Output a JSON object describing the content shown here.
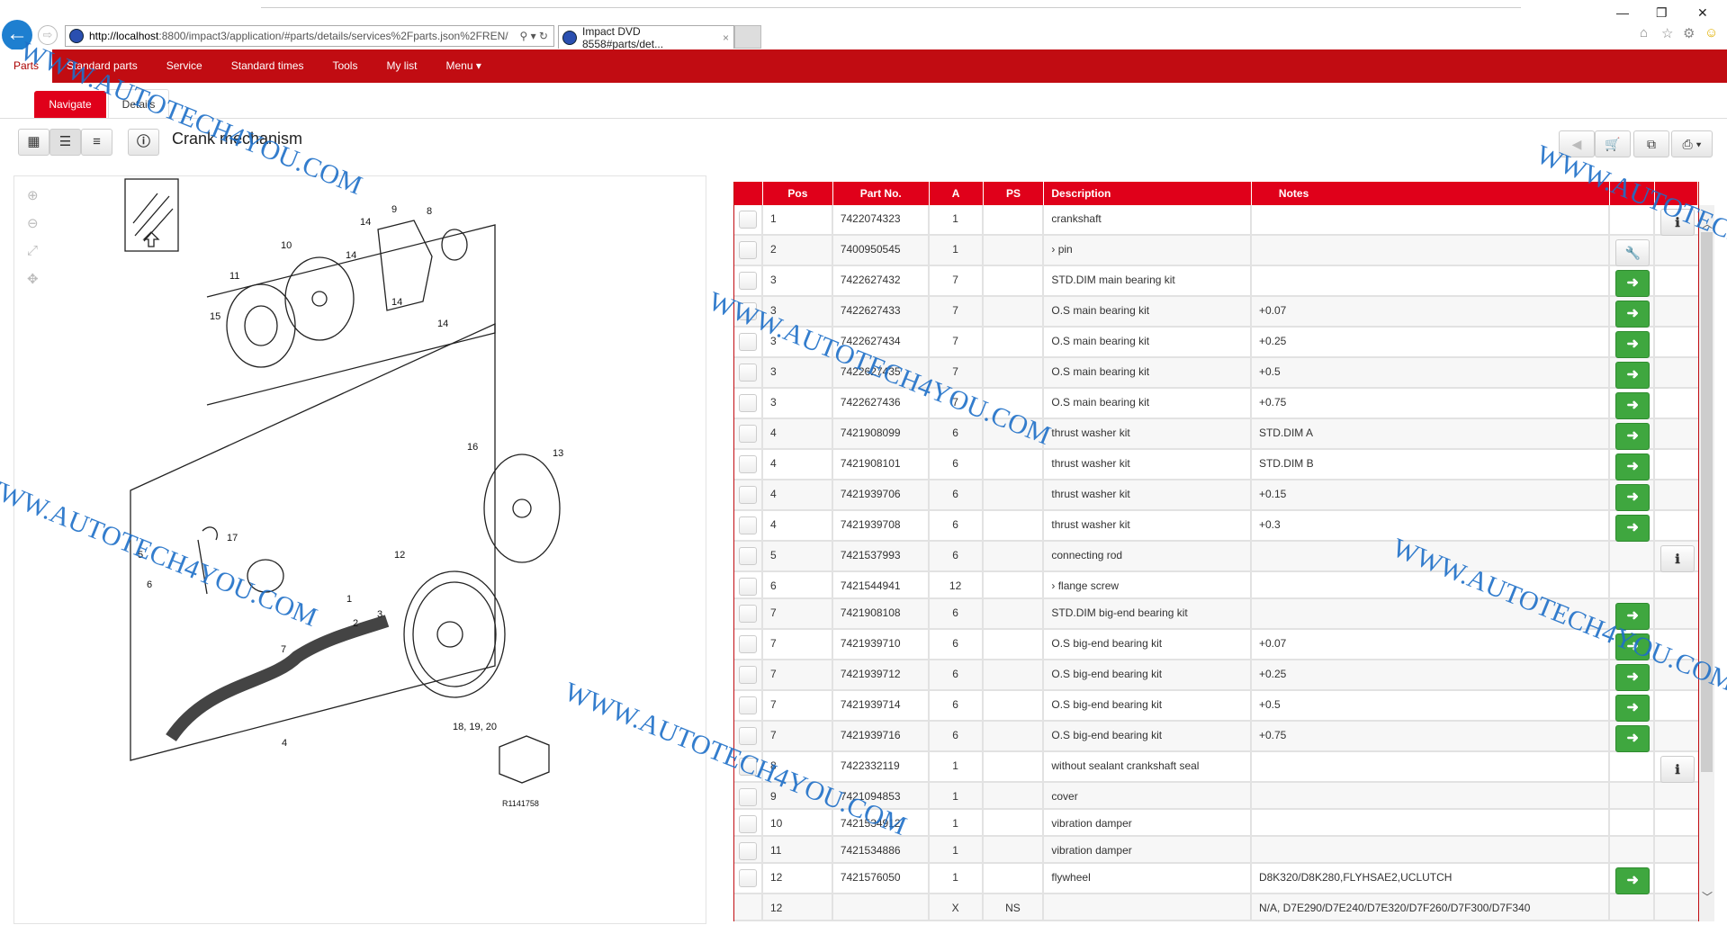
{
  "browser": {
    "url_host": "http://localhost",
    "url_rest": ":8800/impact3/application/#parts/details/services%2Fparts.json%2FREN/",
    "tab_title": "Impact DVD 8558#parts/det...",
    "tab_close": "×"
  },
  "nav": {
    "items": [
      "Parts",
      "Standard parts",
      "Service",
      "Standard times",
      "Tools",
      "My list",
      "Menu ▾"
    ]
  },
  "subtabs": {
    "navigate": "Navigate",
    "details": "Details"
  },
  "toolbar": {
    "title": "Crank mechanism"
  },
  "diagram": {
    "labels": [
      "9",
      "8",
      "14",
      "10",
      "14",
      "11",
      "14",
      "15",
      "14",
      "16",
      "13",
      "5",
      "17",
      "6",
      "12",
      "1",
      "2",
      "3",
      "7",
      "4",
      "18, 19, 20"
    ],
    "code": "R1141758"
  },
  "table": {
    "headers": [
      "Pos",
      "Part No.",
      "A",
      "PS",
      "Description",
      "Notes"
    ],
    "rows": [
      {
        "pos": "1",
        "part": "7422074323",
        "a": "1",
        "ps": "",
        "desc": "crankshaft",
        "notes": "",
        "action": "info"
      },
      {
        "pos": "2",
        "part": "7400950545",
        "a": "1",
        "ps": "",
        "desc": "› pin",
        "notes": "",
        "action": "tool"
      },
      {
        "pos": "3",
        "part": "7422627432",
        "a": "7",
        "ps": "",
        "desc": "STD.DIM main bearing kit",
        "notes": "",
        "action": "arrow"
      },
      {
        "pos": "3",
        "part": "7422627433",
        "a": "7",
        "ps": "",
        "desc": "O.S main bearing kit",
        "notes": "+0.07",
        "action": "arrow"
      },
      {
        "pos": "3",
        "part": "7422627434",
        "a": "7",
        "ps": "",
        "desc": "O.S main bearing kit",
        "notes": "+0.25",
        "action": "arrow"
      },
      {
        "pos": "3",
        "part": "7422627435",
        "a": "7",
        "ps": "",
        "desc": "O.S main bearing kit",
        "notes": "+0.5",
        "action": "arrow"
      },
      {
        "pos": "3",
        "part": "7422627436",
        "a": "7",
        "ps": "",
        "desc": "O.S main bearing kit",
        "notes": "+0.75",
        "action": "arrow"
      },
      {
        "pos": "4",
        "part": "7421908099",
        "a": "6",
        "ps": "",
        "desc": "thrust washer kit",
        "notes": "STD.DIM A",
        "action": "arrow"
      },
      {
        "pos": "4",
        "part": "7421908101",
        "a": "6",
        "ps": "",
        "desc": "thrust washer kit",
        "notes": "STD.DIM B",
        "action": "arrow"
      },
      {
        "pos": "4",
        "part": "7421939706",
        "a": "6",
        "ps": "",
        "desc": "thrust washer kit",
        "notes": "+0.15",
        "action": "arrow"
      },
      {
        "pos": "4",
        "part": "7421939708",
        "a": "6",
        "ps": "",
        "desc": "thrust washer kit",
        "notes": "+0.3",
        "action": "arrow"
      },
      {
        "pos": "5",
        "part": "7421537993",
        "a": "6",
        "ps": "",
        "desc": "connecting rod",
        "notes": "",
        "action": "info"
      },
      {
        "pos": "6",
        "part": "7421544941",
        "a": "12",
        "ps": "",
        "desc": "› flange screw",
        "notes": "",
        "action": ""
      },
      {
        "pos": "7",
        "part": "7421908108",
        "a": "6",
        "ps": "",
        "desc": "STD.DIM big-end bearing kit",
        "notes": "",
        "action": "arrow"
      },
      {
        "pos": "7",
        "part": "7421939710",
        "a": "6",
        "ps": "",
        "desc": "O.S big-end bearing kit",
        "notes": "+0.07",
        "action": "arrow"
      },
      {
        "pos": "7",
        "part": "7421939712",
        "a": "6",
        "ps": "",
        "desc": "O.S big-end bearing kit",
        "notes": "+0.25",
        "action": "arrow"
      },
      {
        "pos": "7",
        "part": "7421939714",
        "a": "6",
        "ps": "",
        "desc": "O.S big-end bearing kit",
        "notes": "+0.5",
        "action": "arrow"
      },
      {
        "pos": "7",
        "part": "7421939716",
        "a": "6",
        "ps": "",
        "desc": "O.S big-end bearing kit",
        "notes": "+0.75",
        "action": "arrow"
      },
      {
        "pos": "8",
        "part": "7422332119",
        "a": "1",
        "ps": "",
        "desc": "without sealant crankshaft seal",
        "notes": "",
        "action": "info"
      },
      {
        "pos": "9",
        "part": "7421094853",
        "a": "1",
        "ps": "",
        "desc": "cover",
        "notes": "",
        "action": ""
      },
      {
        "pos": "10",
        "part": "7421534912",
        "a": "1",
        "ps": "",
        "desc": "vibration damper",
        "notes": "",
        "action": ""
      },
      {
        "pos": "11",
        "part": "7421534886",
        "a": "1",
        "ps": "",
        "desc": "vibration damper",
        "notes": "",
        "action": ""
      },
      {
        "pos": "12",
        "part": "7421576050",
        "a": "1",
        "ps": "",
        "desc": "flywheel",
        "notes": "D8K320/D8K280,FLYHSAE2,UCLUTCH",
        "action": "arrow"
      },
      {
        "pos": "12",
        "part": "",
        "a": "X",
        "ps": "NS",
        "desc": "",
        "notes": "N/A, D7E290/D7E240/D7E320/D7F260/D7F300/D7F340",
        "action": "",
        "nocheck": true
      }
    ]
  },
  "watermark": "WWW.AUTOTECH4YOU.COM",
  "colors": {
    "brand_red": "#c10c12",
    "header_red": "#e0001a",
    "action_green": "#3fa73f"
  }
}
